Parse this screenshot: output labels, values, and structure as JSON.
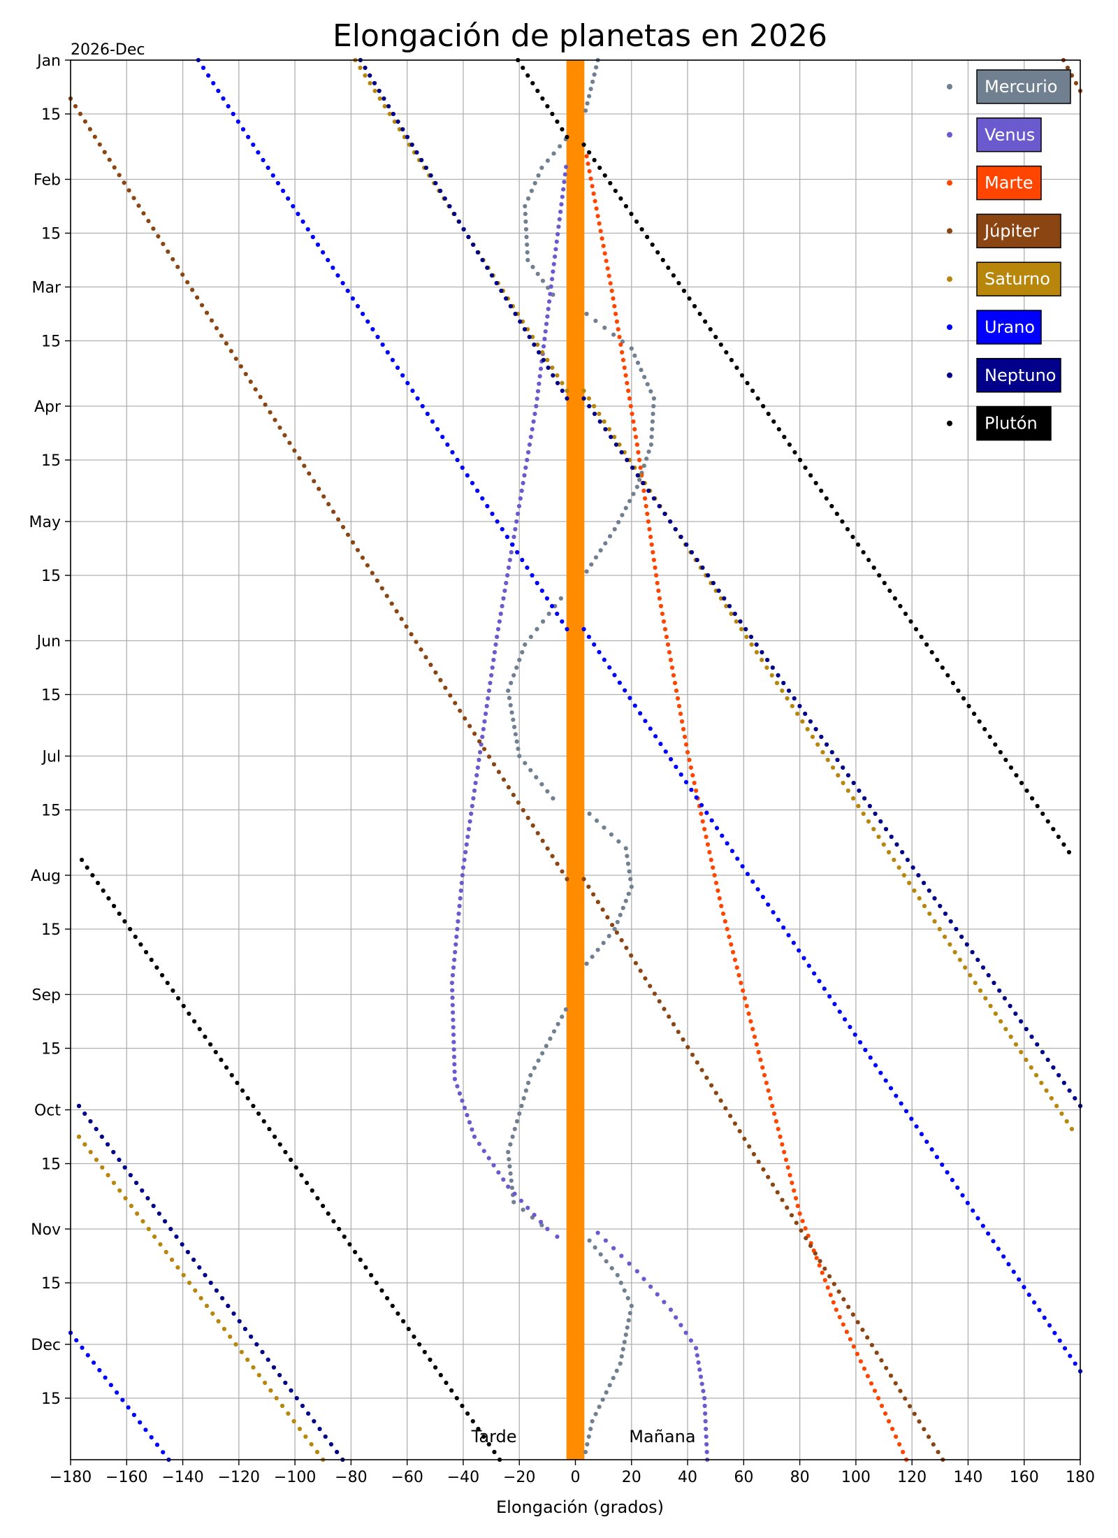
{
  "chart_data": {
    "type": "scatter",
    "title": "Elongación de  planetas en 2026",
    "xlabel": "Elongación (grados)",
    "ylabel": "",
    "xlim": [
      -180,
      180
    ],
    "ylim_days": [
      0,
      364
    ],
    "xticks": [
      -180,
      -160,
      -140,
      -120,
      -100,
      -80,
      -60,
      -40,
      -20,
      0,
      20,
      40,
      60,
      80,
      100,
      120,
      140,
      160,
      180
    ],
    "xtick_labels": [
      "−180",
      "−160",
      "−140",
      "−120",
      "−100",
      "−80",
      "−60",
      "−40",
      "−20",
      "0",
      "20",
      "40",
      "60",
      "80",
      "100",
      "120",
      "140",
      "160",
      "180"
    ],
    "yticks": [
      {
        "day": 0,
        "label": "Jan"
      },
      {
        "day": 14,
        "label": "15"
      },
      {
        "day": 31,
        "label": "Feb"
      },
      {
        "day": 45,
        "label": "15"
      },
      {
        "day": 59,
        "label": "Mar"
      },
      {
        "day": 73,
        "label": "15"
      },
      {
        "day": 90,
        "label": "Apr"
      },
      {
        "day": 104,
        "label": "15"
      },
      {
        "day": 120,
        "label": "May"
      },
      {
        "day": 134,
        "label": "15"
      },
      {
        "day": 151,
        "label": "Jun"
      },
      {
        "day": 165,
        "label": "15"
      },
      {
        "day": 181,
        "label": "Jul"
      },
      {
        "day": 195,
        "label": "15"
      },
      {
        "day": 212,
        "label": "Aug"
      },
      {
        "day": 226,
        "label": "15"
      },
      {
        "day": 243,
        "label": "Sep"
      },
      {
        "day": 257,
        "label": "15"
      },
      {
        "day": 273,
        "label": "Oct"
      },
      {
        "day": 287,
        "label": "15"
      },
      {
        "day": 304,
        "label": "Nov"
      },
      {
        "day": 318,
        "label": "15"
      },
      {
        "day": 334,
        "label": "Dec"
      },
      {
        "day": 348,
        "label": "15"
      }
    ],
    "corner_label": "2026-Dec",
    "grid": true,
    "legend_position": "top-right",
    "sun_band": {
      "x_from": -3.2,
      "x_to": 3.2,
      "color": "#ff8c00"
    },
    "annotations": [
      {
        "text": "Tarde",
        "x": -29,
        "day": 358
      },
      {
        "text": "Mañana",
        "x": 31,
        "day": 358
      }
    ],
    "series": [
      {
        "name": "Mercurio",
        "color": "#708090",
        "points": [
          [
            8,
            0
          ],
          [
            3,
            15
          ],
          [
            -12,
            28
          ],
          [
            -18,
            38
          ],
          [
            -17,
            52
          ],
          [
            -8,
            61
          ],
          [
            -3,
            63
          ],
          [
            4,
            66
          ],
          [
            20,
            75
          ],
          [
            28,
            88
          ],
          [
            27,
            100
          ],
          [
            22,
            111
          ],
          [
            14,
            122
          ],
          [
            4,
            133
          ],
          [
            -3,
            138
          ],
          [
            -18,
            152
          ],
          [
            -24,
            164
          ],
          [
            -20,
            181
          ],
          [
            -8,
            192
          ],
          [
            -3,
            193
          ],
          [
            5,
            196
          ],
          [
            18,
            205
          ],
          [
            20,
            215
          ],
          [
            14,
            226
          ],
          [
            4,
            235
          ],
          [
            -2,
            245
          ],
          [
            -16,
            264
          ],
          [
            -24,
            284
          ],
          [
            -22,
            297
          ],
          [
            -12,
            303
          ],
          [
            -3,
            305
          ],
          [
            5,
            307
          ],
          [
            15,
            316
          ],
          [
            20,
            324
          ],
          [
            16,
            339
          ],
          [
            6,
            354
          ],
          [
            3,
            364
          ]
        ]
      },
      {
        "name": "Venus",
        "color": "#6a5acd",
        "points": [
          [
            -2,
            20
          ],
          [
            -8,
            55
          ],
          [
            -14,
            90
          ],
          [
            -21,
            120
          ],
          [
            -28,
            150
          ],
          [
            -34,
            180
          ],
          [
            -40,
            210
          ],
          [
            -44,
            240
          ],
          [
            -43,
            265
          ],
          [
            -36,
            280
          ],
          [
            -24,
            293
          ],
          [
            -10,
            304
          ],
          [
            -3,
            308
          ],
          [
            8,
            305
          ],
          [
            22,
            315
          ],
          [
            34,
            325
          ],
          [
            43,
            335
          ],
          [
            46,
            348
          ],
          [
            47,
            364
          ]
        ]
      },
      {
        "name": "Marte",
        "color": "#ff4500",
        "points": [
          [
            4,
            25
          ],
          [
            13,
            60
          ],
          [
            22,
            100
          ],
          [
            30,
            140
          ],
          [
            40,
            180
          ],
          [
            52,
            220
          ],
          [
            66,
            260
          ],
          [
            80,
            300
          ],
          [
            93,
            325
          ],
          [
            108,
            348
          ],
          [
            118,
            364
          ]
        ]
      },
      {
        "name": "Júpiter",
        "color": "#8b4513",
        "segments": [
          [
            [
              -180,
              10
            ],
            [
              -3,
              213
            ]
          ],
          [
            [
              3,
              213
            ],
            [
              131,
              364
            ]
          ],
          [
            [
              168,
              -8
            ],
            [
              180,
              8
            ]
          ]
        ]
      },
      {
        "name": "Saturno",
        "color": "#b8860b",
        "segments": [
          [
            [
              -82,
              -4
            ],
            [
              -3,
              86
            ]
          ],
          [
            [
              3,
              86
            ],
            [
              177,
              278
            ]
          ],
          [
            [
              -177,
              280
            ],
            [
              -90,
              364
            ]
          ]
        ]
      },
      {
        "name": "Urano",
        "color": "#0000ff",
        "segments": [
          [
            [
              -138,
              -4
            ],
            [
              -3,
              148
            ]
          ],
          [
            [
              3,
              148
            ],
            [
              180,
              341
            ]
          ],
          [
            [
              -180,
              331
            ],
            [
              -145,
              364
            ]
          ]
        ]
      },
      {
        "name": "Neptuno",
        "color": "#00008b",
        "segments": [
          [
            [
              -80,
              -4
            ],
            [
              -3,
              88
            ]
          ],
          [
            [
              3,
              88
            ],
            [
              180,
              272
            ]
          ],
          [
            [
              -177,
              272
            ],
            [
              -83,
              364
            ]
          ]
        ]
      },
      {
        "name": "Plutón",
        "color": "#000000",
        "segments": [
          [
            [
              -24,
              -4
            ],
            [
              -3,
              20
            ]
          ],
          [
            [
              3,
              22
            ],
            [
              176,
              206
            ]
          ],
          [
            [
              -176,
              208
            ],
            [
              -27,
              364
            ]
          ]
        ]
      }
    ]
  }
}
